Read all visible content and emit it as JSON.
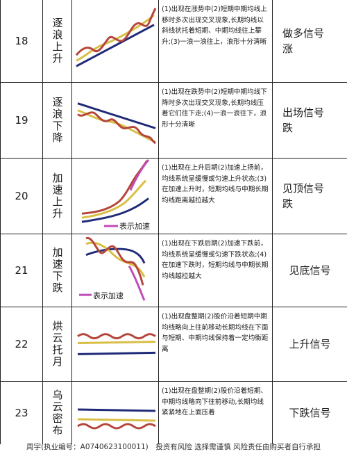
{
  "rows": [
    {
      "num": "18",
      "name": "逐浪上升",
      "desc": "(1)出现在涨势中(2)短期中期均线上移时多次出现交叉现象,长期均线以斜线状托着短期、中期均线往上攀升;(3)一浪一浪往上，浪形十分清晰",
      "signal": "做多信号涨"
    },
    {
      "num": "19",
      "name": "逐浪下降",
      "desc": "(1)出现在跌势中(2)短期中期均线下降时多次出现交叉现象,长期均线压着它们往下走;(4)一浪一浪往下，浪形十分清晰",
      "signal": "出场信号跌"
    },
    {
      "num": "20",
      "name": "加速上升",
      "desc": "(1)出现在上升后期(2)加速上扬前，均线系统呈缓慢或匀速上升状态;(3)在加速上升时，短期均线与中期长期均线距离越拉越大",
      "signal": "见顶信号跌",
      "legend": "表示加速"
    },
    {
      "num": "21",
      "name": "加速下跌",
      "desc": "(1)出现在下跌后期(2)加速下跌前，均线系统呈缓慢或匀速下跌状态;(4)　在加速下跌时，短期均线与中期长期均线越拉越大",
      "signal": "见底信号",
      "legend": "表示加速"
    },
    {
      "num": "22",
      "name": "烘云托月",
      "desc": "(1)出现盘整期(2)股价沿着短期中期均线略向上往前移动长期均线在下面与短期、中期均线保持着一定均衡距离",
      "signal": "上升信号"
    },
    {
      "num": "23",
      "name": "乌云密布",
      "desc": "(1)出现在盘整期(2)股价沿着短期、中期均线略向下往前移动,长期均线紧紧地在上面压着",
      "signal": "下跌信号"
    }
  ],
  "footer": "周宇(执业编号：A0740623100011)　投资有风险 选择需谨慎 风险责任由购买者自行承担",
  "colors": {
    "short": "#b5463a",
    "mid": "#d9be45",
    "long": "#1f2a78",
    "accel": "#c04cb8",
    "border": "#222222"
  }
}
